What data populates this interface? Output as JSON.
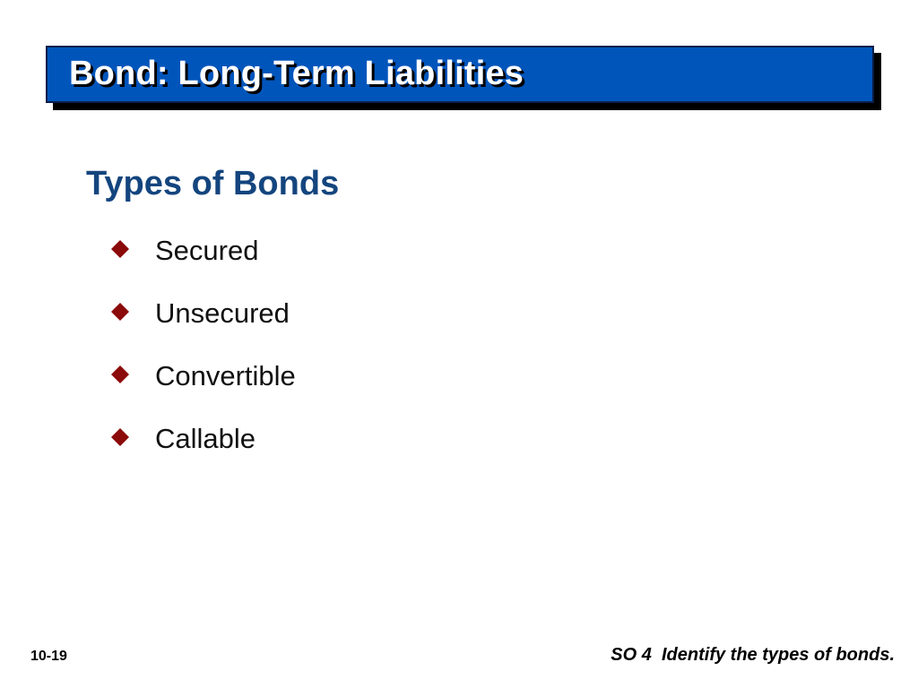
{
  "slide": {
    "title": "Bond:  Long-Term Liabilities",
    "subheading": "Types of Bonds",
    "bullets": [
      {
        "label": "Secured",
        "icon": "diamond-bullet-icon"
      },
      {
        "label": "Unsecured",
        "icon": "diamond-bullet-icon"
      },
      {
        "label": "Convertible",
        "icon": "diamond-bullet-icon"
      },
      {
        "label": "Callable",
        "icon": "diamond-bullet-icon"
      }
    ],
    "page_number": "10-19",
    "footer_note": "SO 4  Identify the types of bonds."
  },
  "colors": {
    "title_bar": "#0055bb",
    "title_shadow": "#000000",
    "subheading": "#14457e",
    "bullet_diamond": "#8b0a0a"
  }
}
